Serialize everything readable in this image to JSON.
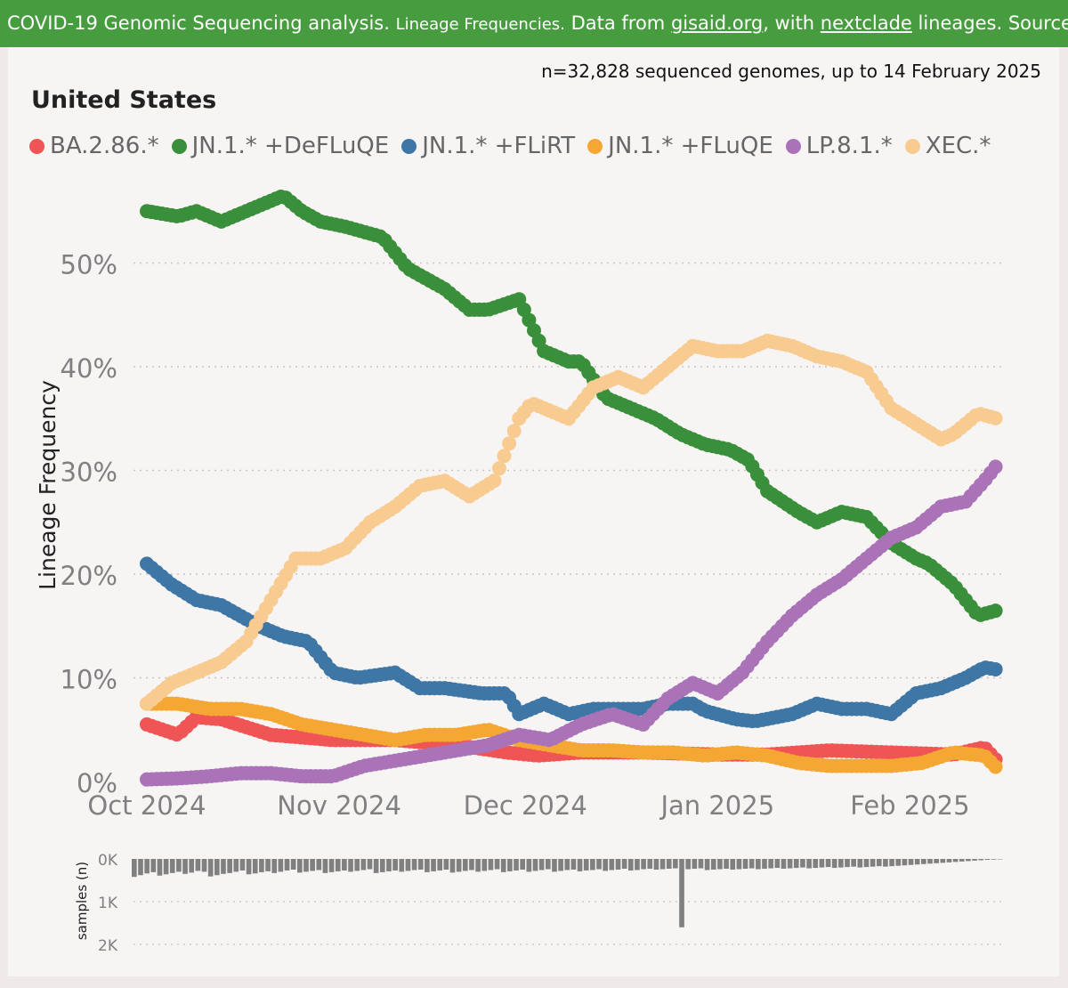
{
  "banner": {
    "title": "COVID-19 Genomic Sequencing analysis.",
    "subtitle": "Lineage Frequencies.",
    "source_prefix": "Data from",
    "source_link": "gisaid.org",
    "source_middle": ", with",
    "lineage_link": "nextclade",
    "source_suffix": "lineages. Source"
  },
  "header": {
    "samples_text": "n=32,828 sequenced genomes, up to 14 February 2025",
    "country": "United States"
  },
  "colors": {
    "BA.2.86.*": "#f05555",
    "JN.1.* +DeFLuQE": "#3a8f3a",
    "JN.1.* +FLiRT": "#3e77a6",
    "JN.1.* +FLuQE": "#f5a733",
    "LP.8.1.*": "#aa73b8",
    "XEC.*": "#f8cb91",
    "samples_bar": "#808080",
    "gridline": "#c9c4c4",
    "tick": "#808080"
  },
  "chart_data": {
    "type": "scatter",
    "title": "United States",
    "ylabel": "Lineage Frequency",
    "xlabel": "",
    "x_ticks": [
      "Oct 2024",
      "Nov 2024",
      "Dec 2024",
      "Jan 2025",
      "Feb 2025"
    ],
    "y_ticks": [
      "0%",
      "10%",
      "20%",
      "30%",
      "40%",
      "50%"
    ],
    "ylim": [
      0,
      60
    ],
    "x_range_days": [
      0,
      137
    ],
    "x_note": "day 0 = 1 Oct 2024; day 137 = 15 Feb 2025",
    "series": [
      {
        "name": "BA.2.86.*",
        "x": [
          0,
          5,
          8,
          12,
          20,
          30,
          40,
          50,
          58,
          63,
          70,
          80,
          92,
          100,
          110,
          120,
          130,
          135,
          137
        ],
        "values": [
          5.5,
          4.5,
          6.2,
          6.0,
          4.5,
          4.0,
          4.0,
          3.5,
          2.8,
          2.5,
          2.8,
          2.8,
          2.6,
          2.6,
          3.0,
          2.8,
          2.6,
          3.3,
          2.0
        ]
      },
      {
        "name": "JN.1.* +DeFLuQE",
        "x": [
          0,
          5,
          8,
          12,
          18,
          22,
          25,
          28,
          32,
          38,
          42,
          48,
          52,
          55,
          60,
          64,
          68,
          70,
          74,
          78,
          82,
          86,
          90,
          94,
          97,
          100,
          105,
          108,
          112,
          116,
          120,
          124,
          126,
          130,
          134,
          137
        ],
        "values": [
          55,
          54.5,
          55,
          54,
          55.5,
          56.5,
          55,
          54,
          53.5,
          52.5,
          49.5,
          47.5,
          45.5,
          45.5,
          46.5,
          41.5,
          40.5,
          40.5,
          37,
          36,
          35,
          33.5,
          32.5,
          32,
          31,
          28,
          26,
          25,
          26,
          25.5,
          23,
          21.5,
          21,
          19,
          16,
          16.5
        ]
      },
      {
        "name": "JN.1.* +FLiRT",
        "x": [
          0,
          4,
          8,
          12,
          18,
          22,
          26,
          30,
          34,
          40,
          44,
          48,
          54,
          58,
          60,
          64,
          68,
          72,
          76,
          80,
          84,
          88,
          90,
          95,
          98,
          104,
          108,
          112,
          116,
          120,
          124,
          128,
          132,
          135,
          137
        ],
        "values": [
          21,
          19,
          17.5,
          17,
          15,
          14,
          13.5,
          10.5,
          10,
          10.5,
          9,
          9,
          8.5,
          8.5,
          6.5,
          7.5,
          6.5,
          7,
          7,
          7,
          7.5,
          7.5,
          6.8,
          6,
          5.8,
          6.5,
          7.5,
          7,
          7,
          6.5,
          8.5,
          9,
          10,
          11,
          10.8
        ]
      },
      {
        "name": "JN.1.* +FLuQE",
        "x": [
          0,
          5,
          10,
          15,
          20,
          25,
          30,
          35,
          40,
          45,
          50,
          55,
          60,
          65,
          70,
          75,
          80,
          85,
          90,
          95,
          100,
          105,
          110,
          115,
          120,
          125,
          130,
          135,
          137
        ],
        "values": [
          7.5,
          7.5,
          7.0,
          7.0,
          6.5,
          5.5,
          5.0,
          4.5,
          4.0,
          4.5,
          4.5,
          5.0,
          4.0,
          3.5,
          3.0,
          3.0,
          2.8,
          2.8,
          2.5,
          2.8,
          2.5,
          1.8,
          1.5,
          1.5,
          1.5,
          1.8,
          2.8,
          2.5,
          1.3
        ]
      },
      {
        "name": "LP.8.1.*",
        "x": [
          0,
          5,
          10,
          15,
          20,
          25,
          30,
          35,
          40,
          45,
          50,
          55,
          60,
          65,
          70,
          75,
          80,
          84,
          88,
          92,
          96,
          100,
          104,
          108,
          112,
          116,
          120,
          124,
          128,
          132,
          135,
          137
        ],
        "values": [
          0.2,
          0.3,
          0.5,
          0.8,
          0.8,
          0.5,
          0.5,
          1.5,
          2.0,
          2.5,
          3.0,
          3.5,
          4.5,
          4.0,
          5.5,
          6.5,
          5.5,
          8.0,
          9.5,
          8.5,
          10.5,
          13.5,
          16.0,
          18.0,
          19.5,
          21.5,
          23.5,
          24.5,
          26.5,
          27.0,
          29.0,
          30.5
        ]
      },
      {
        "name": "XEC.*",
        "x": [
          0,
          4,
          8,
          12,
          16,
          20,
          24,
          28,
          32,
          36,
          40,
          44,
          48,
          52,
          56,
          60,
          62,
          64,
          68,
          72,
          76,
          80,
          84,
          88,
          92,
          96,
          100,
          104,
          108,
          112,
          116,
          120,
          124,
          128,
          130,
          134,
          137
        ],
        "values": [
          7.5,
          9.5,
          10.5,
          11.5,
          13.5,
          17.5,
          21.5,
          21.5,
          22.5,
          25,
          26.5,
          28.5,
          29,
          27.5,
          29,
          35,
          36.5,
          36,
          35,
          38,
          39,
          38,
          40,
          42,
          41.5,
          41.5,
          42.5,
          42,
          41,
          40.5,
          39.5,
          36,
          34.5,
          33,
          33.5,
          35.5,
          35
        ]
      }
    ],
    "samples_panel": {
      "ylabel": "samples (n)",
      "y_ticks": [
        "0K",
        "1K",
        "2K"
      ],
      "ylim": [
        0,
        2000
      ],
      "values": [
        420,
        380,
        340,
        310,
        390,
        360,
        330,
        300,
        350,
        320,
        280,
        300,
        410,
        380,
        350,
        330,
        300,
        270,
        360,
        340,
        310,
        290,
        330,
        300,
        270,
        250,
        320,
        300,
        280,
        260,
        330,
        310,
        290,
        270,
        300,
        280,
        260,
        240,
        330,
        310,
        290,
        270,
        300,
        280,
        260,
        250,
        310,
        290,
        270,
        250,
        320,
        300,
        280,
        260,
        300,
        280,
        260,
        240,
        310,
        290,
        270,
        250,
        300,
        280,
        260,
        240,
        300,
        280,
        260,
        250,
        290,
        270,
        260,
        240,
        280,
        260,
        250,
        230,
        270,
        260,
        240,
        230,
        250,
        240,
        230,
        220,
        1600,
        240,
        230,
        220,
        260,
        250,
        240,
        230,
        250,
        240,
        230,
        220,
        240,
        230,
        220,
        210,
        230,
        220,
        210,
        200,
        220,
        210,
        200,
        190,
        210,
        200,
        190,
        180,
        200,
        190,
        180,
        170,
        180,
        170,
        160,
        150,
        140,
        130,
        120,
        110,
        100,
        90,
        80,
        70,
        60,
        50,
        40,
        30,
        20,
        15,
        10
      ]
    }
  }
}
